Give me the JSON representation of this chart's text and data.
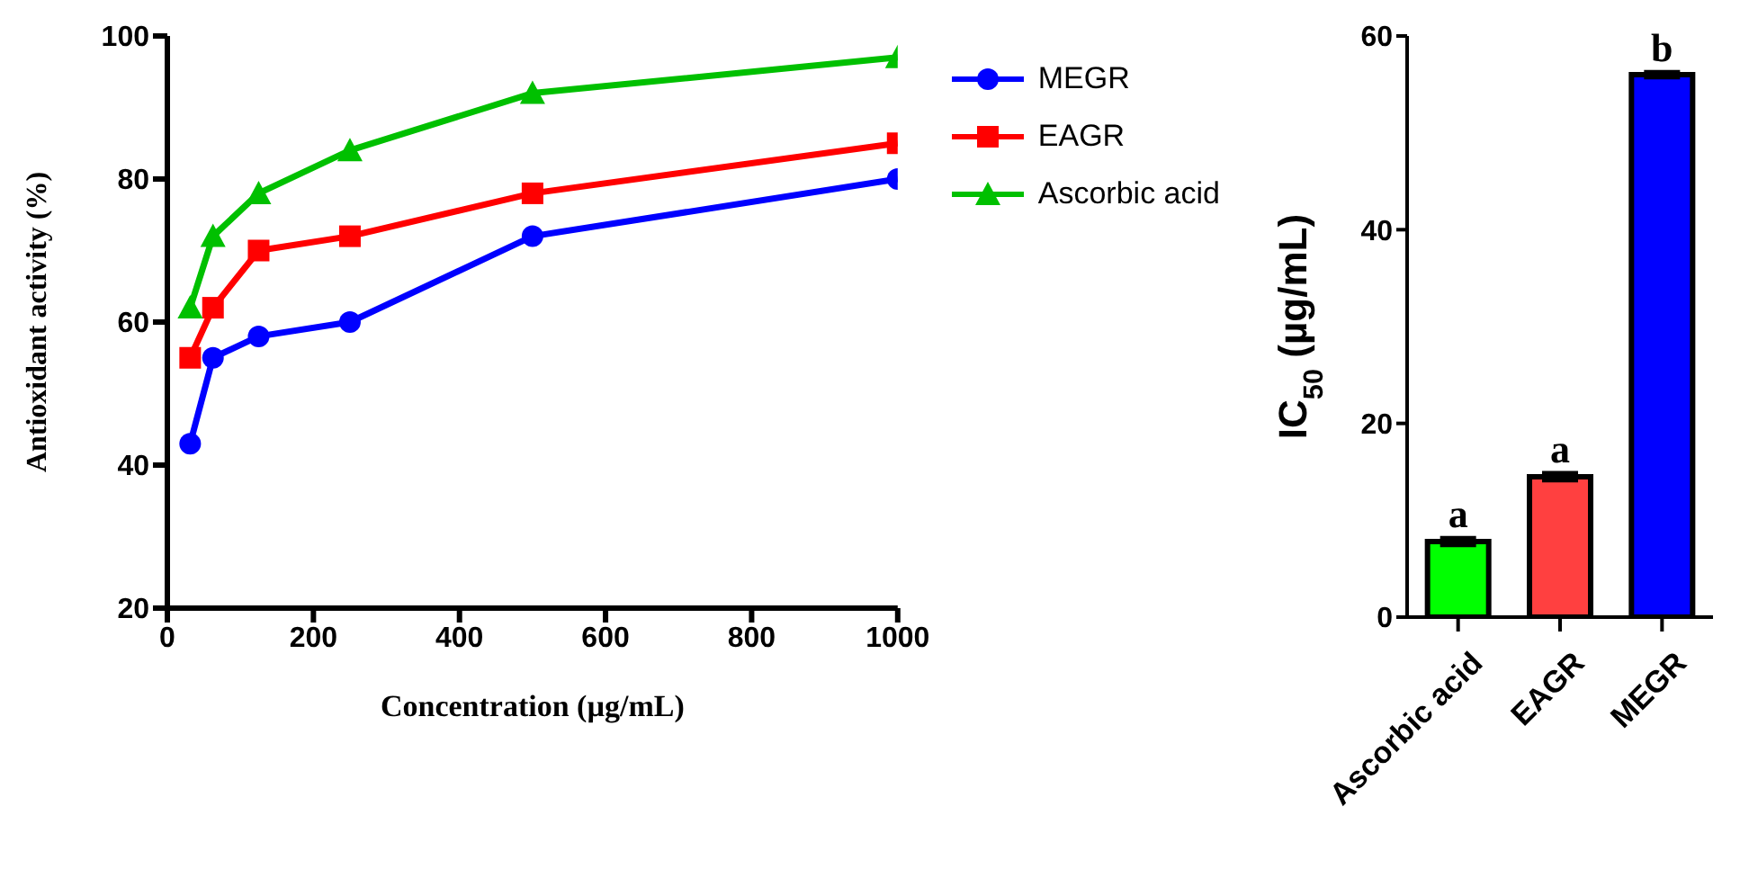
{
  "chart_data": [
    {
      "type": "line",
      "xlabel": "Concentration (µg/mL)",
      "ylabel": "Antioxidant activity (%)",
      "x": [
        31.25,
        62.5,
        125,
        250,
        500,
        1000
      ],
      "series": [
        {
          "name": "MEGR",
          "color": "#0000ff",
          "marker": "circle",
          "values": [
            43,
            55,
            58,
            60,
            72,
            80
          ]
        },
        {
          "name": "EAGR",
          "color": "#ff0000",
          "marker": "square",
          "values": [
            55,
            62,
            70,
            72,
            78,
            85
          ]
        },
        {
          "name": "Ascorbic acid",
          "color": "#00c000",
          "marker": "triangle",
          "values": [
            62,
            72,
            78,
            84,
            92,
            97
          ]
        }
      ],
      "xlim": [
        0,
        1000
      ],
      "xticks": [
        0,
        200,
        400,
        600,
        800,
        1000
      ],
      "ylim": [
        20,
        100
      ],
      "yticks": [
        20,
        40,
        60,
        80,
        100
      ],
      "grid": false,
      "legend": "right",
      "line_style": "solid"
    },
    {
      "type": "bar",
      "ylabel": "IC$_{50}$ (µg/mL)",
      "categories": [
        "Ascorbic acid",
        "EAGR",
        "MEGR"
      ],
      "values": [
        7.8,
        14.5,
        56
      ],
      "colors": [
        "#00ff00",
        "#ff4040",
        "#0000ff"
      ],
      "errors": [
        0.4,
        0.4,
        0.3
      ],
      "annotations": [
        {
          "text": "a",
          "x": "Ascorbic acid",
          "y": 8.2
        },
        {
          "text": "a",
          "x": "EAGR",
          "y": 14.9
        },
        {
          "text": "b",
          "x": "MEGR",
          "y": 56.3
        }
      ],
      "ylim": [
        0,
        60
      ],
      "yticks": [
        0,
        20,
        40,
        60
      ],
      "grid": false
    }
  ]
}
